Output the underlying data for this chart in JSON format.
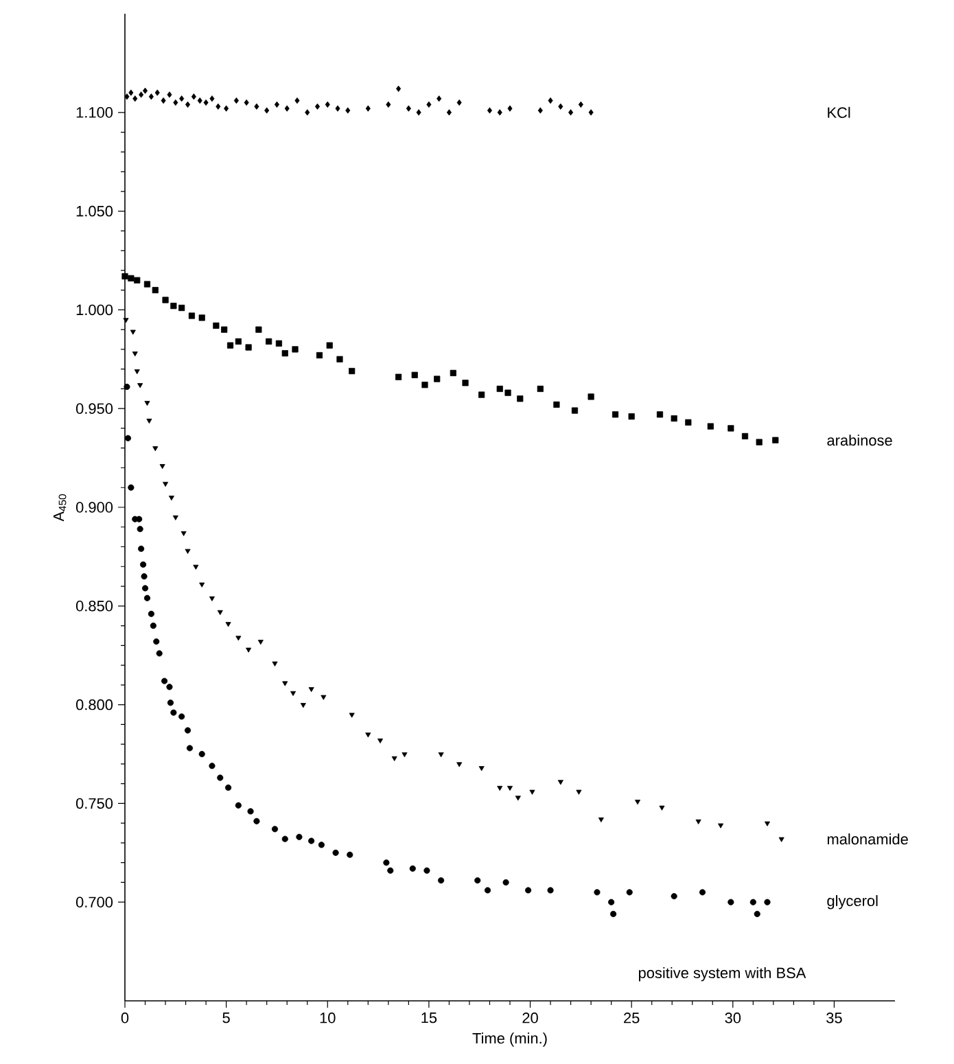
{
  "chart_data": {
    "type": "scatter",
    "xlabel": "Time (min.)",
    "ylabel": "A$_{450}$",
    "xlim": [
      0,
      38
    ],
    "ylim": [
      0.65,
      1.15
    ],
    "xticks": [
      0,
      5,
      10,
      15,
      20,
      25,
      30,
      35
    ],
    "yticks": [
      {
        "value": 0.7,
        "label": "0.700"
      },
      {
        "value": 0.75,
        "label": "0.750"
      },
      {
        "value": 0.8,
        "label": "0.800"
      },
      {
        "value": 0.85,
        "label": "0.850"
      },
      {
        "value": 0.9,
        "label": "0.900"
      },
      {
        "value": 0.95,
        "label": "0.950"
      },
      {
        "value": 1.0,
        "label": "1.000"
      },
      {
        "value": 1.05,
        "label": "1.050"
      },
      {
        "value": 1.1,
        "label": "1.100"
      }
    ],
    "series": [
      {
        "name": "KCl",
        "color": "#000000",
        "marker": "diamond",
        "x": [
          0.1,
          0.3,
          0.5,
          0.8,
          1.0,
          1.3,
          1.6,
          1.9,
          2.2,
          2.5,
          2.8,
          3.1,
          3.4,
          3.7,
          4.0,
          4.3,
          4.6,
          5.0,
          5.5,
          6.0,
          6.5,
          7.0,
          7.5,
          8.0,
          8.5,
          9.0,
          9.5,
          10.0,
          10.5,
          11.0,
          12.0,
          13.0,
          13.5,
          14.0,
          14.5,
          15.0,
          15.5,
          16.0,
          16.5,
          18.0,
          18.5,
          19.0,
          20.5,
          21.0,
          21.5,
          22.0,
          22.5,
          23.0
        ],
        "values": [
          1.108,
          1.11,
          1.107,
          1.109,
          1.111,
          1.108,
          1.11,
          1.106,
          1.109,
          1.105,
          1.107,
          1.104,
          1.108,
          1.106,
          1.105,
          1.107,
          1.103,
          1.102,
          1.106,
          1.105,
          1.103,
          1.101,
          1.104,
          1.102,
          1.106,
          1.1,
          1.103,
          1.104,
          1.102,
          1.101,
          1.102,
          1.104,
          1.112,
          1.102,
          1.1,
          1.104,
          1.107,
          1.1,
          1.105,
          1.101,
          1.1,
          1.102,
          1.101,
          1.106,
          1.103,
          1.1,
          1.104,
          1.1
        ]
      },
      {
        "name": "arabinose",
        "color": "#000000",
        "marker": "square",
        "x": [
          0.0,
          0.3,
          0.6,
          1.1,
          1.5,
          2.0,
          2.4,
          2.8,
          3.3,
          3.8,
          4.5,
          4.9,
          5.2,
          5.6,
          6.1,
          6.6,
          7.1,
          7.6,
          7.9,
          8.4,
          9.6,
          10.1,
          10.6,
          11.2,
          13.5,
          14.3,
          14.8,
          15.4,
          16.2,
          16.8,
          17.6,
          18.5,
          18.9,
          19.5,
          20.5,
          21.3,
          22.2,
          23.0,
          24.2,
          25.0,
          26.4,
          27.1,
          27.8,
          28.9,
          29.9,
          30.6,
          31.3,
          32.1
        ],
        "values": [
          1.017,
          1.016,
          1.015,
          1.013,
          1.01,
          1.005,
          1.002,
          1.001,
          0.997,
          0.996,
          0.992,
          0.99,
          0.982,
          0.984,
          0.981,
          0.99,
          0.984,
          0.983,
          0.978,
          0.98,
          0.977,
          0.982,
          0.975,
          0.969,
          0.966,
          0.967,
          0.962,
          0.965,
          0.968,
          0.963,
          0.957,
          0.96,
          0.958,
          0.955,
          0.96,
          0.952,
          0.949,
          0.956,
          0.947,
          0.946,
          0.947,
          0.945,
          0.943,
          0.941,
          0.94,
          0.936,
          0.933,
          0.934
        ]
      },
      {
        "name": "malonamide",
        "color": "#000000",
        "marker": "triangle",
        "x": [
          0.05,
          0.4,
          0.5,
          0.6,
          0.75,
          1.1,
          1.2,
          1.5,
          1.85,
          2.0,
          2.3,
          2.5,
          2.9,
          3.1,
          3.5,
          3.8,
          4.3,
          4.7,
          5.1,
          5.6,
          6.1,
          6.7,
          7.4,
          7.9,
          8.3,
          8.8,
          9.2,
          9.8,
          11.2,
          12.0,
          12.6,
          13.3,
          13.8,
          15.6,
          16.5,
          17.6,
          18.5,
          19.0,
          19.4,
          20.1,
          21.5,
          22.4,
          23.5,
          25.3,
          26.5,
          28.3,
          29.4,
          31.7,
          32.4
        ],
        "values": [
          0.995,
          0.989,
          0.978,
          0.969,
          0.962,
          0.953,
          0.944,
          0.93,
          0.921,
          0.912,
          0.905,
          0.895,
          0.887,
          0.878,
          0.87,
          0.861,
          0.854,
          0.847,
          0.841,
          0.834,
          0.828,
          0.832,
          0.821,
          0.811,
          0.806,
          0.8,
          0.808,
          0.804,
          0.795,
          0.785,
          0.782,
          0.773,
          0.775,
          0.775,
          0.77,
          0.768,
          0.758,
          0.758,
          0.753,
          0.756,
          0.761,
          0.756,
          0.742,
          0.751,
          0.748,
          0.741,
          0.739,
          0.74,
          0.732
        ]
      },
      {
        "name": "glycerol",
        "color": "#000000",
        "marker": "circle",
        "x": [
          0.1,
          0.15,
          0.3,
          0.5,
          0.7,
          0.75,
          0.8,
          0.9,
          0.95,
          1.0,
          1.1,
          1.3,
          1.4,
          1.55,
          1.7,
          1.95,
          2.2,
          2.25,
          2.4,
          2.8,
          3.1,
          3.2,
          3.8,
          4.3,
          4.7,
          5.1,
          5.6,
          6.2,
          6.5,
          7.4,
          7.9,
          8.6,
          9.2,
          9.7,
          10.4,
          11.1,
          12.9,
          13.1,
          14.2,
          14.9,
          15.6,
          17.4,
          17.9,
          18.8,
          19.9,
          21.0,
          23.3,
          24.0,
          24.1,
          24.9,
          27.1,
          28.5,
          29.9,
          31.0,
          31.2,
          31.7
        ],
        "values": [
          0.961,
          0.935,
          0.91,
          0.894,
          0.894,
          0.889,
          0.879,
          0.871,
          0.865,
          0.859,
          0.854,
          0.846,
          0.84,
          0.832,
          0.826,
          0.812,
          0.809,
          0.801,
          0.796,
          0.794,
          0.787,
          0.778,
          0.775,
          0.769,
          0.763,
          0.758,
          0.749,
          0.746,
          0.741,
          0.737,
          0.732,
          0.733,
          0.731,
          0.729,
          0.725,
          0.724,
          0.72,
          0.716,
          0.717,
          0.716,
          0.711,
          0.711,
          0.706,
          0.71,
          0.706,
          0.706,
          0.705,
          0.7,
          0.694,
          0.705,
          0.703,
          0.705,
          0.7,
          0.7,
          0.694,
          0.7
        ]
      }
    ],
    "annotations": [
      "positive system with BSA"
    ]
  }
}
